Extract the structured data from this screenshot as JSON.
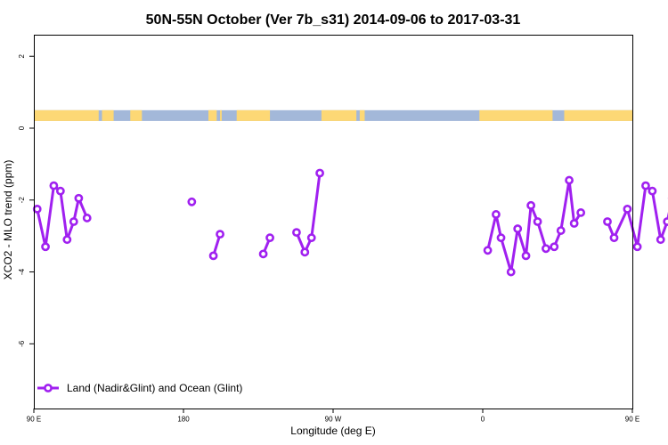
{
  "chart_data": {
    "type": "line",
    "title": "50N-55N October (Ver 7b_s31)   2014-09-06 to 2017-03-31",
    "xlabel": "Longitude (deg E)",
    "ylabel": "XCO2 - MLO trend (ppm)",
    "xlim": [
      90,
      450
    ],
    "ylim": [
      -7.8,
      2.6
    ],
    "x_ticks": [
      {
        "value": 90,
        "label": "90 E"
      },
      {
        "value": 180,
        "label": "180"
      },
      {
        "value": 270,
        "label": "90 W"
      },
      {
        "value": 360,
        "label": "0"
      },
      {
        "value": 450,
        "label": "90 E"
      },
      {
        "value": 540,
        "label": "180"
      }
    ],
    "y_ticks": [
      {
        "value": 2,
        "label": "2"
      },
      {
        "value": 0,
        "label": "0"
      },
      {
        "value": -2,
        "label": "-2"
      },
      {
        "value": -4,
        "label": "-4"
      },
      {
        "value": -6,
        "label": "-6"
      }
    ],
    "land_band": {
      "y_range": [
        0.2,
        0.5
      ],
      "ocean_color": "#a3b8d9",
      "land_color": "#fdd875",
      "land_intervals": [
        [
          90,
          129
        ],
        [
          131,
          138
        ],
        [
          148,
          155
        ],
        [
          195,
          200
        ],
        [
          202,
          203
        ],
        [
          212,
          232
        ],
        [
          263,
          284
        ],
        [
          286,
          289
        ],
        [
          358,
          402
        ],
        [
          409,
          454
        ],
        [
          459,
          462
        ],
        [
          472,
          477
        ],
        [
          479,
          480
        ],
        [
          491,
          532
        ]
      ]
    },
    "series": [
      {
        "name": "Land (Nadir&Glint) and Ocean (Glint)",
        "color": "#a020f0",
        "segments": [
          [
            [
              92,
              -2.25
            ],
            [
              97,
              -3.3
            ],
            [
              102,
              -1.6
            ],
            [
              106,
              -1.75
            ],
            [
              110,
              -3.1
            ],
            [
              114,
              -2.6
            ],
            [
              117,
              -1.95
            ],
            [
              122,
              -2.5
            ]
          ],
          [
            [
              185,
              -2.05
            ]
          ],
          [
            [
              198,
              -3.55
            ],
            [
              202,
              -2.95
            ]
          ],
          [
            [
              228,
              -3.5
            ],
            [
              232,
              -3.05
            ]
          ],
          [
            [
              248,
              -2.9
            ],
            [
              253,
              -3.45
            ],
            [
              257,
              -3.05
            ],
            [
              262,
              -1.25
            ]
          ],
          [
            [
              363,
              -3.4
            ],
            [
              368,
              -2.4
            ],
            [
              371,
              -3.05
            ],
            [
              377,
              -4.0
            ],
            [
              381,
              -2.8
            ],
            [
              386,
              -3.55
            ],
            [
              389,
              -2.15
            ],
            [
              393,
              -2.6
            ],
            [
              398,
              -3.35
            ],
            [
              403,
              -3.3
            ],
            [
              407,
              -2.85
            ],
            [
              412,
              -1.45
            ],
            [
              415,
              -2.65
            ],
            [
              419,
              -2.35
            ]
          ],
          [
            [
              435,
              -2.6
            ],
            [
              439,
              -3.05
            ],
            [
              447,
              -2.25
            ],
            [
              453,
              -3.3
            ],
            [
              458,
              -1.6
            ],
            [
              462,
              -1.75
            ],
            [
              467,
              -3.1
            ],
            [
              471,
              -2.6
            ],
            [
              474,
              -1.95
            ],
            [
              479,
              -2.5
            ]
          ]
        ]
      }
    ],
    "legend_position": "bottom-left"
  }
}
